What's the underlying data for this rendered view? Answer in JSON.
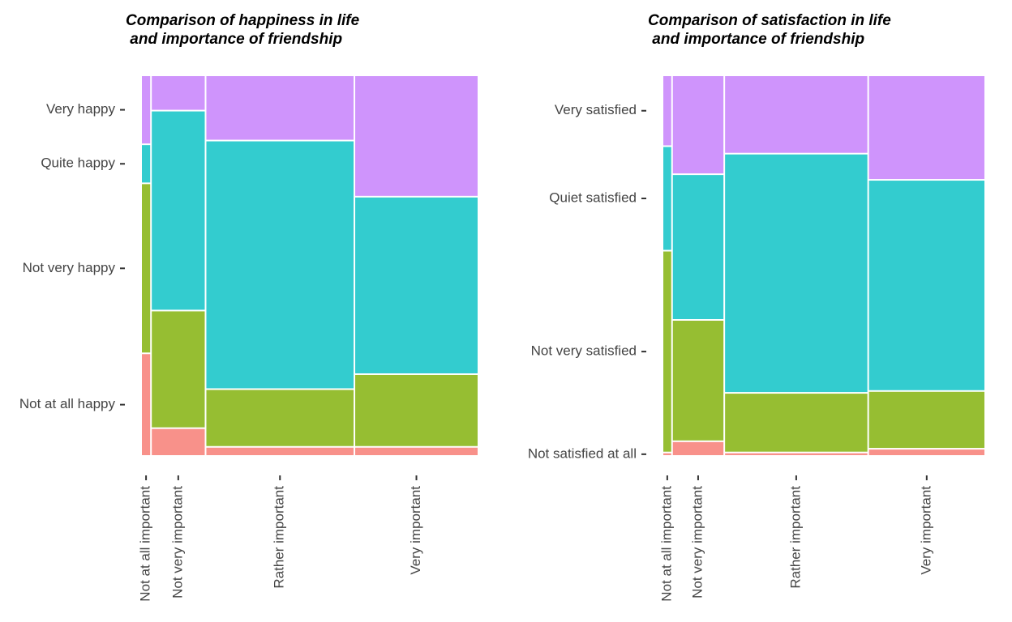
{
  "chart_data": [
    {
      "type": "mosaic",
      "title": "Comparison of happiness in life\n and importance of friendship",
      "categories": [
        "Not at all important",
        "Not very important",
        "Rather important",
        "Very important"
      ],
      "widths": [
        2.5,
        16,
        44.5,
        37
      ],
      "series": [
        {
          "name": "Not at all happy",
          "color": "#f8918a",
          "values": [
            27,
            7,
            2,
            2
          ]
        },
        {
          "name": "Not very happy",
          "color": "#96be32",
          "values": [
            45,
            31,
            15,
            19
          ]
        },
        {
          "name": "Quite happy",
          "color": "#33cccf",
          "values": [
            10,
            53,
            66,
            47
          ]
        },
        {
          "name": "Very happy",
          "color": "#cf94fc",
          "values": [
            18,
            9,
            17,
            32
          ]
        }
      ]
    },
    {
      "type": "mosaic",
      "title": "Comparison of satisfaction in life\n and importance of friendship",
      "categories": [
        "Not at all important",
        "Not very important",
        "Rather important",
        "Very important"
      ],
      "widths": [
        2.5,
        16,
        45,
        36.5
      ],
      "series": [
        {
          "name": "Not satisfied at all",
          "color": "#f8918a",
          "values": [
            0.5,
            3.5,
            0.5,
            1.5
          ]
        },
        {
          "name": "Not very satisfied",
          "color": "#96be32",
          "values": [
            53.5,
            32,
            15.5,
            15
          ]
        },
        {
          "name": "Quiet satisfied",
          "color": "#33cccf",
          "values": [
            27.5,
            38.5,
            63.5,
            56
          ]
        },
        {
          "name": "Very satisfied",
          "color": "#cf94fc",
          "values": [
            18.5,
            26,
            20.5,
            27.5
          ]
        }
      ]
    }
  ]
}
